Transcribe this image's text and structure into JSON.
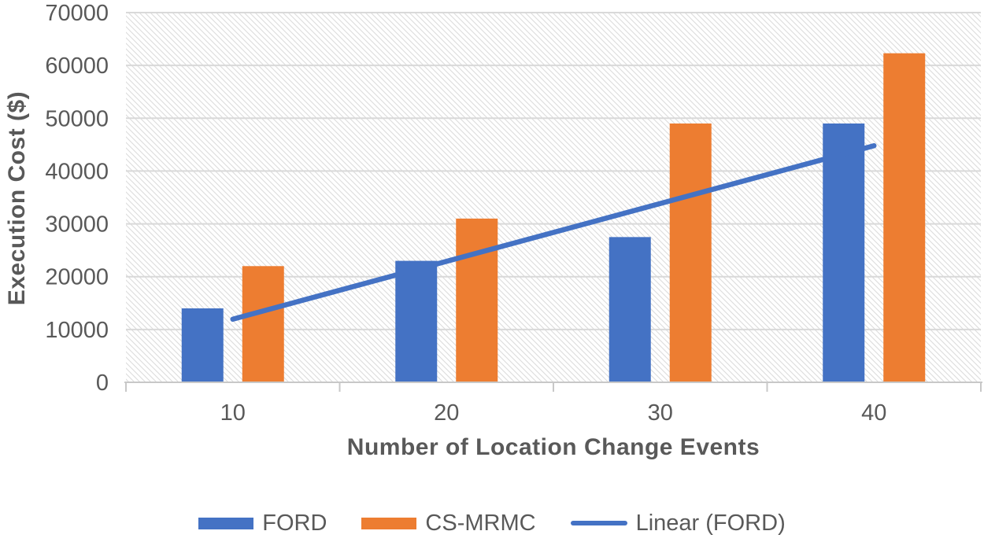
{
  "chart_data": {
    "type": "bar",
    "title": "",
    "categories": [
      "10",
      "20",
      "30",
      "40"
    ],
    "series": [
      {
        "name": "FORD",
        "color": "#4472C4",
        "values": [
          14000,
          23000,
          27500,
          49000
        ]
      },
      {
        "name": "CS-MRMC",
        "color": "#ED7D31",
        "values": [
          22000,
          31000,
          49000,
          62300
        ]
      }
    ],
    "trendline": {
      "name": "Linear (FORD)",
      "based_on": "FORD",
      "color": "#4472C4",
      "y_at_first_category": 11950,
      "y_at_last_category": 44800
    },
    "xlabel": "Number of Location Change Events",
    "ylabel": "Execution Cost ($)",
    "ylim": [
      0,
      70000
    ],
    "ytick_step": 10000,
    "yticks": [
      "0",
      "10000",
      "20000",
      "30000",
      "40000",
      "50000",
      "60000",
      "70000"
    ],
    "grid": "horizontal",
    "legend_position": "bottom",
    "plot_background": "light-diagonal-hatch"
  },
  "legend": {
    "items": [
      {
        "label": "FORD",
        "swatch": "rect",
        "color": "#4472C4"
      },
      {
        "label": "CS-MRMC",
        "swatch": "rect",
        "color": "#ED7D31"
      },
      {
        "label": "Linear (FORD)",
        "swatch": "line",
        "color": "#4472C4"
      }
    ]
  },
  "style": {
    "tick_text_color": "#595959",
    "title_text_color": "#595959",
    "gridline_color": "#D9D9D9",
    "axis_line_color": "#C8C8C8",
    "hatch_color": "#DCDCDC",
    "background": "#FFFFFF"
  }
}
